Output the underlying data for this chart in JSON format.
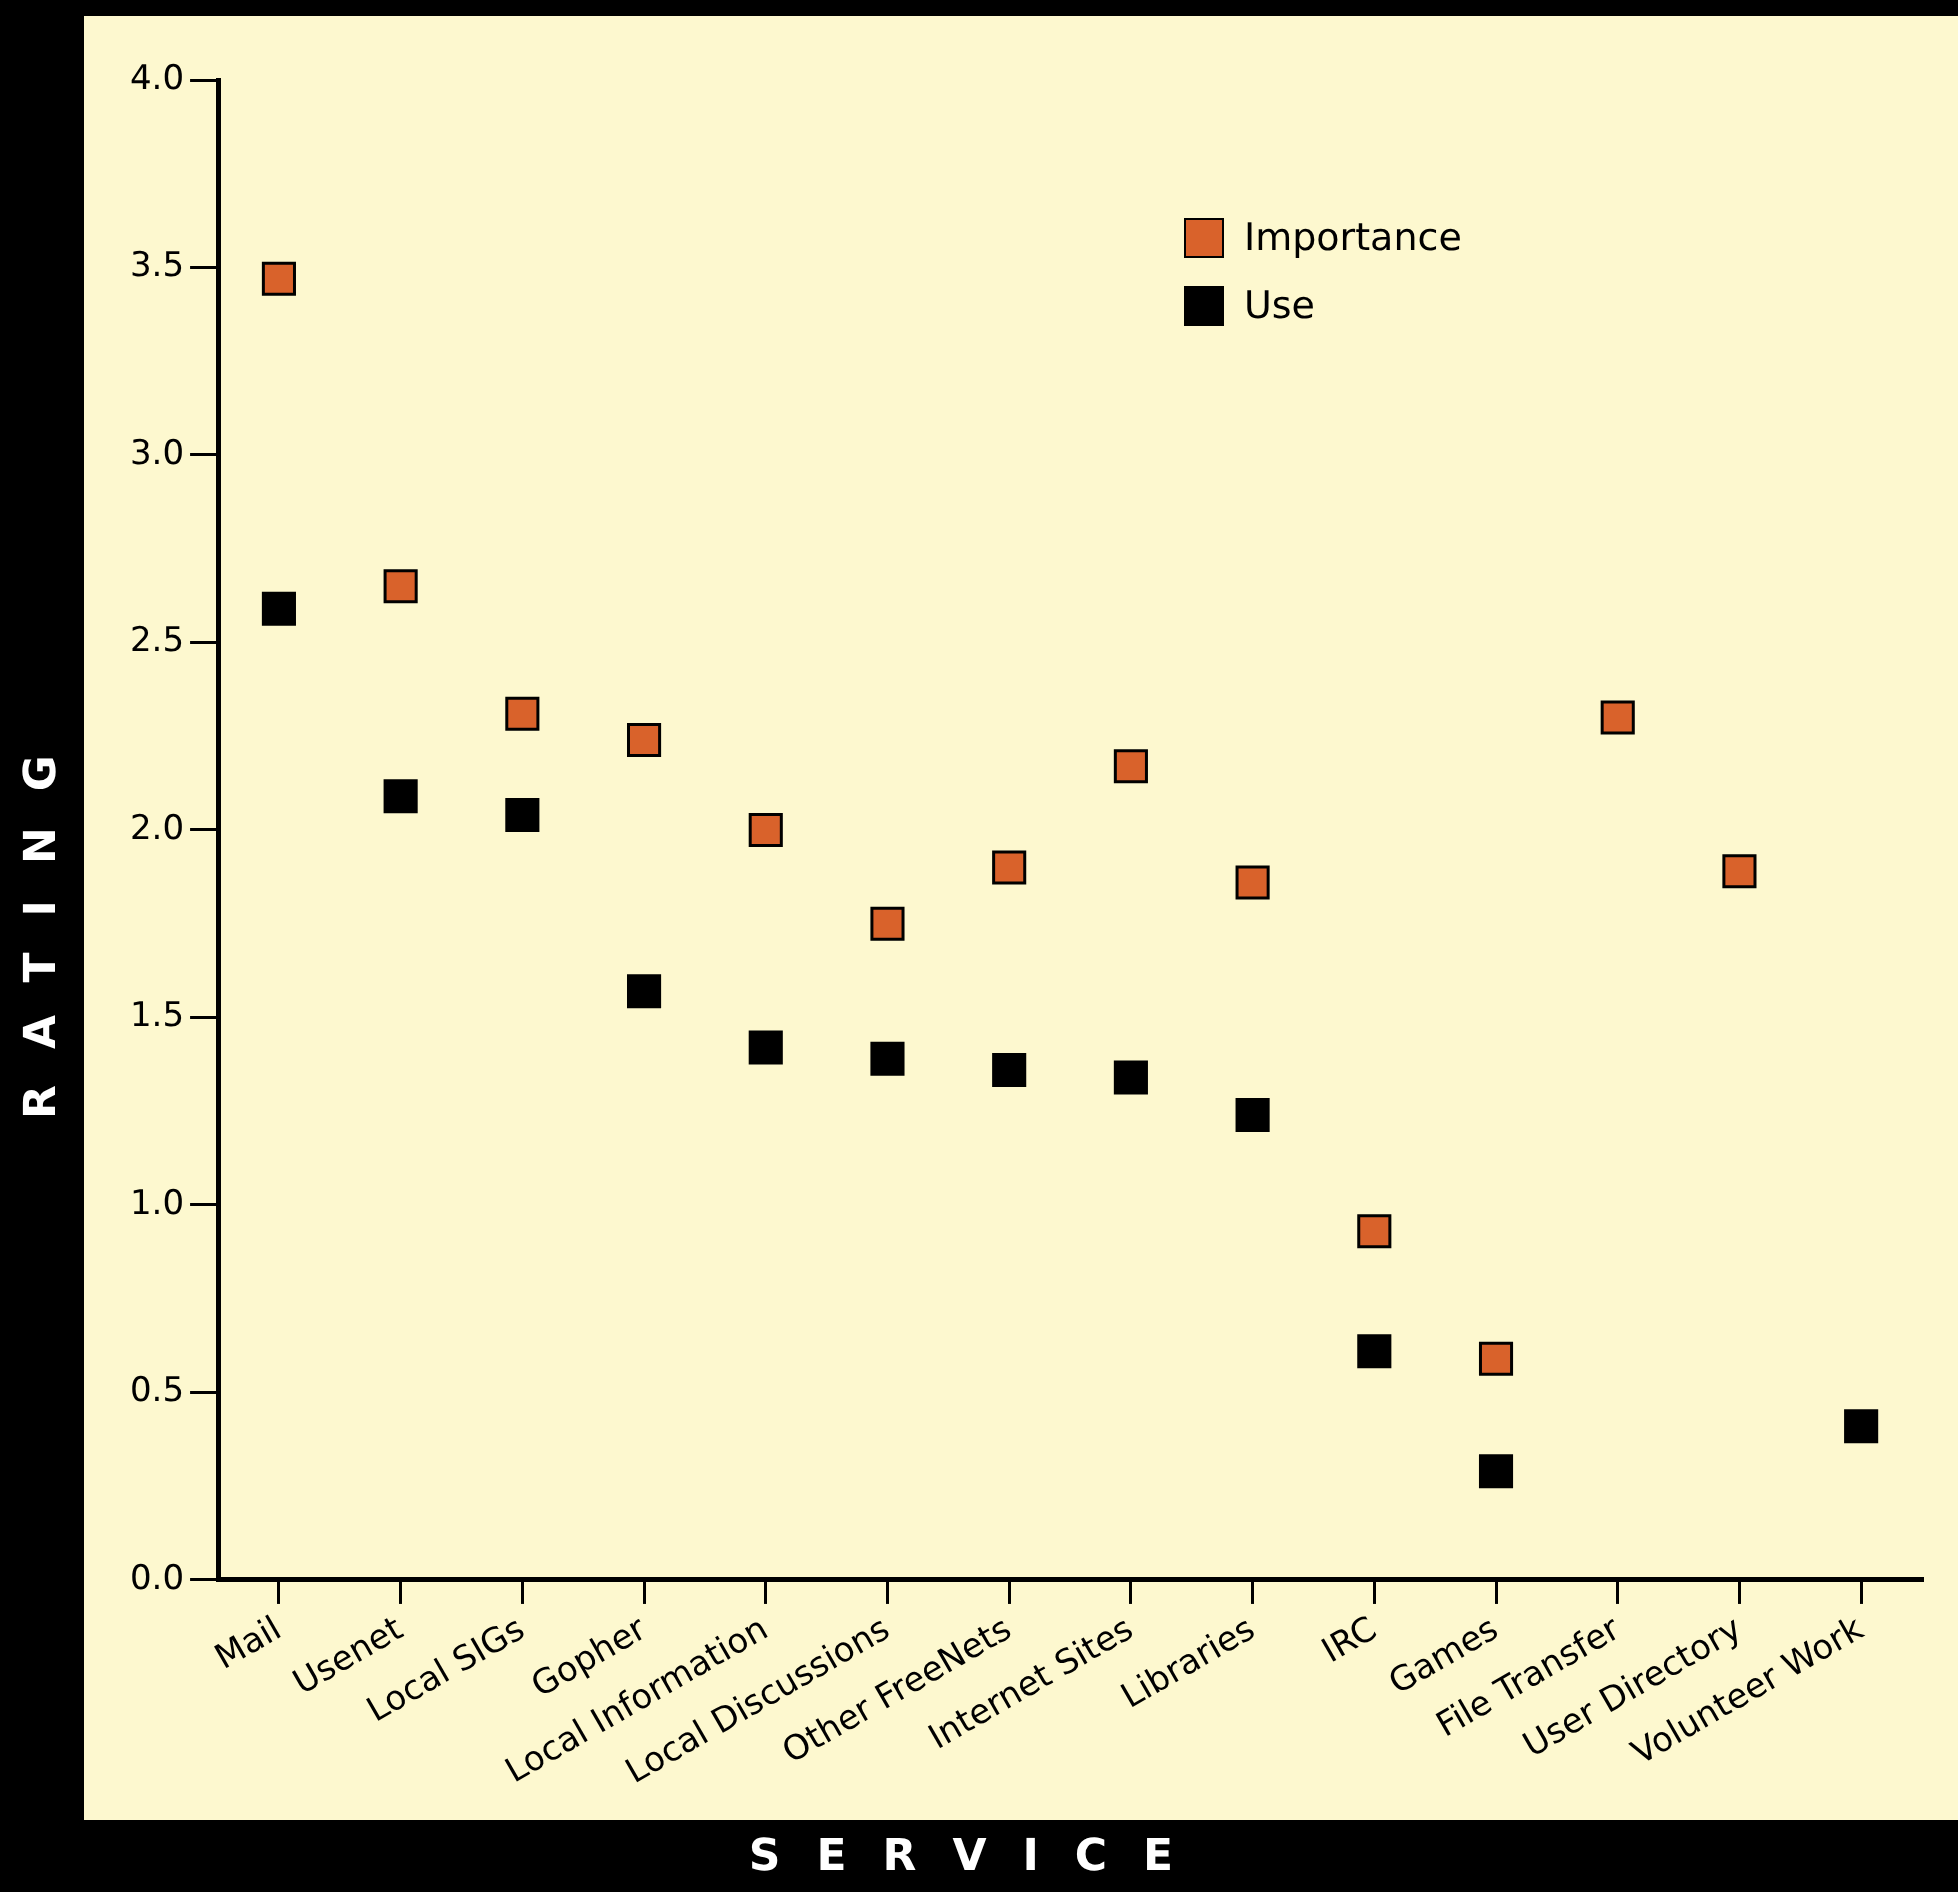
{
  "chart_data": {
    "type": "scatter",
    "xlabel": "SERVICE",
    "ylabel": "RATING",
    "categories": [
      "Mail",
      "Usenet",
      "Local SIGs",
      "Gopher",
      "Local Information",
      "Local Discussions",
      "Other FreeNets",
      "Internet Sites",
      "Libraries",
      "IRC",
      "Games",
      "File Transfer",
      "User Directory",
      "Volunteer Work"
    ],
    "series": [
      {
        "name": "Importance",
        "color": "#d9622b",
        "values": [
          3.47,
          2.65,
          2.31,
          2.24,
          2.0,
          1.75,
          1.9,
          2.17,
          1.86,
          0.93,
          0.59,
          2.3,
          1.89,
          null
        ]
      },
      {
        "name": "Use",
        "color": "#000000",
        "values": [
          2.59,
          2.09,
          2.04,
          1.57,
          1.42,
          1.39,
          1.36,
          1.34,
          1.24,
          0.61,
          0.29,
          null,
          null,
          0.41
        ]
      }
    ],
    "ylim": [
      0,
      4.0
    ],
    "yticks": [
      {
        "value": 0,
        "label": "0.0"
      },
      0.5,
      {
        "value": 1,
        "label": "1.0"
      },
      1.5,
      {
        "value": 2,
        "label": "2.0"
      },
      2.5,
      {
        "value": 3,
        "label": "3.0"
      },
      3.5,
      {
        "value": 4,
        "label": "4.0"
      }
    ],
    "grid": false,
    "legend": "top right",
    "marker": "square"
  }
}
